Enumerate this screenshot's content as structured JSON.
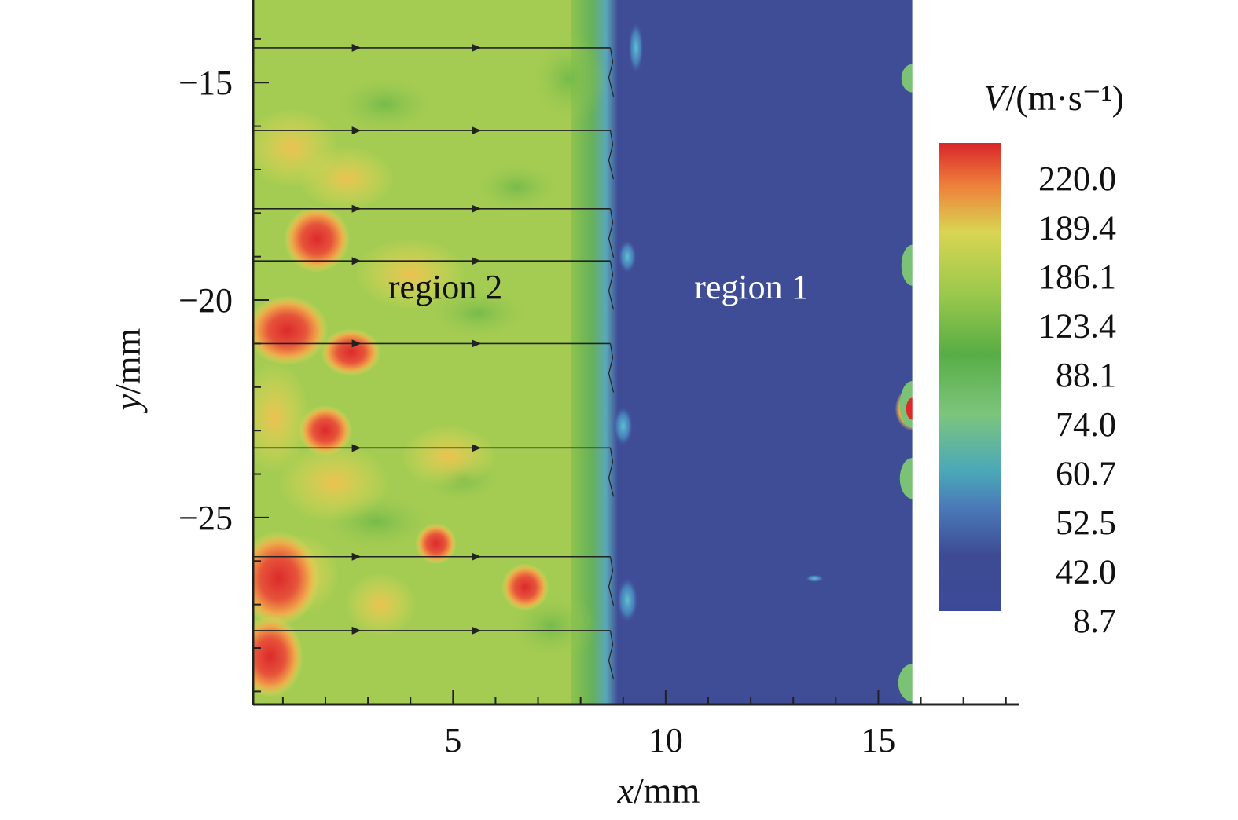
{
  "chart_data": {
    "type": "heatmap",
    "title": "",
    "xlabel": "x/mm",
    "xlabel_var": "x",
    "xlabel_unit": "/mm",
    "ylabel": "y/mm",
    "ylabel_var": "y",
    "ylabel_unit": "/mm",
    "xlim": [
      0.3,
      18.3
    ],
    "ylim": [
      -29.3,
      -13.1
    ],
    "x_ticks": [
      5,
      10,
      15
    ],
    "x_tick_labels": [
      "5",
      "10",
      "15"
    ],
    "y_ticks": [
      -15,
      -20,
      -25
    ],
    "y_tick_labels": [
      "−15",
      "−20",
      "−25"
    ],
    "grid": false,
    "colorbar": {
      "title": "V/(m·s⁻¹)",
      "title_var": "V",
      "title_unit": "/(m·s⁻¹)",
      "levels": [
        "220.0",
        "189.4",
        "186.1",
        "123.4",
        "88.1",
        "74.0",
        "60.7",
        "52.5",
        "42.0",
        "8.7"
      ],
      "colors": [
        "#d9262a",
        "#ee7f3a",
        "#cbd94d",
        "#9cc94c",
        "#58ad45",
        "#7cc57d",
        "#4ba8b8",
        "#4a79b8",
        "#3e4b94",
        "#3b4a98"
      ]
    },
    "regions": [
      {
        "label": "region 2",
        "x_range": [
          0.3,
          8.6
        ],
        "level": "high speed",
        "color": "#a5cc52"
      },
      {
        "label": "region 1",
        "x_range": [
          8.6,
          15.8
        ],
        "level": "low speed",
        "color": "#3f4c96"
      }
    ],
    "interface_x": 8.6,
    "right_edge_x": 15.8,
    "hotspots": [
      {
        "x": 1.8,
        "y": -18.6,
        "value": 220.0
      },
      {
        "x": 1.1,
        "y": -20.7,
        "value": 220.0
      },
      {
        "x": 2.6,
        "y": -21.2,
        "value": 200.0
      },
      {
        "x": 2.0,
        "y": -23.0,
        "value": 200.0
      },
      {
        "x": 4.6,
        "y": -25.6,
        "value": 220.0
      },
      {
        "x": 6.7,
        "y": -26.6,
        "value": 220.0
      },
      {
        "x": 0.9,
        "y": -26.4,
        "value": 220.0
      },
      {
        "x": 0.7,
        "y": -28.2,
        "value": 220.0
      },
      {
        "x": 15.8,
        "y": -22.5,
        "value": 220.0
      }
    ],
    "cool_spots": [
      {
        "x": 9.3,
        "y": -14.2
      },
      {
        "x": 9.1,
        "y": -19.0
      },
      {
        "x": 9.0,
        "y": -22.9
      },
      {
        "x": 9.1,
        "y": -26.9
      },
      {
        "x": 13.5,
        "y": -26.4
      }
    ],
    "streamlines_y": [
      -14.2,
      -16.1,
      -17.9,
      -19.1,
      -21.0,
      -23.4,
      -25.9,
      -27.6
    ],
    "streamline_x_end": 8.7
  },
  "labels": {
    "region2": "region 2",
    "region1": "region 1"
  }
}
